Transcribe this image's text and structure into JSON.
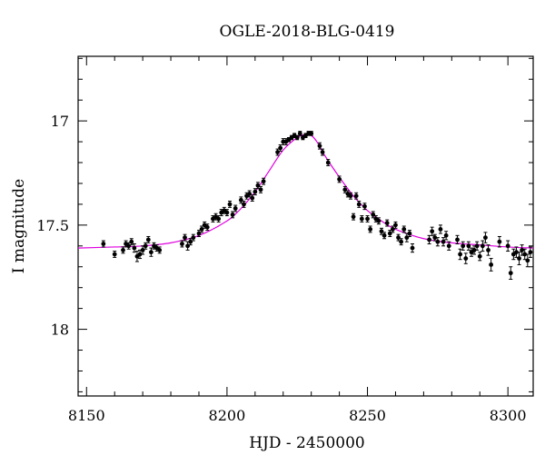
{
  "chart_data": {
    "type": "scatter",
    "title": "OGLE-2018-BLG-0419",
    "xlabel": "HJD - 2450000",
    "ylabel": "I magnitude",
    "xlim": [
      8147,
      8309
    ],
    "ylim": [
      18.32,
      16.69
    ],
    "y_inverted": true,
    "x_ticks": [
      8150,
      8200,
      8250,
      8300
    ],
    "x_tick_labels": [
      "8150",
      "8200",
      "8250",
      "8300"
    ],
    "y_ticks": [
      17,
      17.5,
      18
    ],
    "y_tick_labels": [
      "17",
      "17.5",
      "18"
    ],
    "grid": false,
    "colors": {
      "points": "#000000",
      "model": "#e000e0"
    },
    "series": [
      {
        "type": "scatter",
        "x": [
          8156,
          8160,
          8163,
          8164,
          8165,
          8166,
          8167,
          8168,
          8169,
          8170,
          8171,
          8172,
          8173,
          8174,
          8175,
          8176,
          8184,
          8185,
          8186,
          8187,
          8188,
          8190,
          8191,
          8192,
          8193,
          8195,
          8196,
          8197,
          8198,
          8199,
          8200,
          8201,
          8202,
          8203,
          8205,
          8206,
          8207,
          8208,
          8209,
          8210,
          8211,
          8212,
          8213,
          8218,
          8219,
          8220,
          8221,
          8222,
          8223,
          8224,
          8225,
          8226,
          8227,
          8228,
          8229,
          8230,
          8233,
          8234,
          8236,
          8240,
          8242,
          8243,
          8244,
          8245,
          8246,
          8247,
          8248,
          8249,
          8250,
          8251,
          8252,
          8253,
          8254,
          8255,
          8256,
          8257,
          8258,
          8259,
          8260,
          8261,
          8262,
          8263,
          8264,
          8265,
          8266,
          8272,
          8273,
          8274,
          8275,
          8276,
          8277,
          8278,
          8279,
          8282,
          8283,
          8284,
          8285,
          8286,
          8287,
          8288,
          8289,
          8290,
          8291,
          8292,
          8293,
          8294,
          8297,
          8300,
          8301,
          8302,
          8303,
          8304,
          8305,
          8306,
          8307,
          8308
        ],
        "y": [
          17.59,
          17.64,
          17.62,
          17.59,
          17.6,
          17.58,
          17.61,
          17.65,
          17.64,
          17.62,
          17.6,
          17.57,
          17.63,
          17.6,
          17.61,
          17.62,
          17.59,
          17.56,
          17.6,
          17.58,
          17.56,
          17.54,
          17.52,
          17.5,
          17.51,
          17.47,
          17.46,
          17.47,
          17.44,
          17.43,
          17.44,
          17.4,
          17.45,
          17.42,
          17.38,
          17.4,
          17.36,
          17.35,
          17.37,
          17.34,
          17.31,
          17.33,
          17.29,
          17.15,
          17.13,
          17.1,
          17.1,
          17.09,
          17.08,
          17.07,
          17.08,
          17.06,
          17.08,
          17.07,
          17.06,
          17.06,
          17.12,
          17.15,
          17.2,
          17.28,
          17.33,
          17.35,
          17.36,
          17.46,
          17.36,
          17.4,
          17.47,
          17.41,
          17.47,
          17.52,
          17.45,
          17.47,
          17.48,
          17.53,
          17.55,
          17.49,
          17.54,
          17.52,
          17.5,
          17.56,
          17.58,
          17.52,
          17.56,
          17.54,
          17.61,
          17.57,
          17.53,
          17.56,
          17.58,
          17.52,
          17.58,
          17.55,
          17.6,
          17.57,
          17.64,
          17.6,
          17.66,
          17.6,
          17.63,
          17.62,
          17.6,
          17.65,
          17.6,
          17.56,
          17.62,
          17.69,
          17.58,
          17.6,
          17.73,
          17.64,
          17.63,
          17.66,
          17.62,
          17.64,
          17.67,
          17.63
        ],
        "yerr": [
          0.015,
          0.015,
          0.015,
          0.015,
          0.015,
          0.015,
          0.02,
          0.025,
          0.02,
          0.02,
          0.015,
          0.015,
          0.02,
          0.015,
          0.015,
          0.015,
          0.015,
          0.015,
          0.02,
          0.015,
          0.015,
          0.015,
          0.015,
          0.015,
          0.015,
          0.015,
          0.015,
          0.015,
          0.015,
          0.015,
          0.015,
          0.015,
          0.015,
          0.015,
          0.015,
          0.015,
          0.015,
          0.015,
          0.015,
          0.015,
          0.015,
          0.015,
          0.015,
          0.015,
          0.015,
          0.015,
          0.015,
          0.01,
          0.01,
          0.01,
          0.01,
          0.01,
          0.01,
          0.01,
          0.01,
          0.01,
          0.015,
          0.015,
          0.015,
          0.015,
          0.015,
          0.015,
          0.015,
          0.015,
          0.015,
          0.015,
          0.015,
          0.015,
          0.015,
          0.015,
          0.015,
          0.015,
          0.015,
          0.015,
          0.015,
          0.015,
          0.015,
          0.015,
          0.015,
          0.015,
          0.015,
          0.015,
          0.02,
          0.015,
          0.02,
          0.02,
          0.02,
          0.015,
          0.02,
          0.02,
          0.02,
          0.02,
          0.02,
          0.02,
          0.025,
          0.02,
          0.025,
          0.02,
          0.02,
          0.02,
          0.02,
          0.02,
          0.025,
          0.025,
          0.025,
          0.03,
          0.025,
          0.025,
          0.03,
          0.025,
          0.025,
          0.03,
          0.025,
          0.025,
          0.03,
          0.025
        ]
      },
      {
        "type": "line",
        "x": [
          8147,
          8160,
          8170,
          8180,
          8190,
          8200,
          8205,
          8210,
          8215,
          8220,
          8225,
          8228,
          8230,
          8232,
          8235,
          8240,
          8245,
          8250,
          8255,
          8260,
          8270,
          8280,
          8290,
          8300,
          8309
        ],
        "y": [
          17.61,
          17.605,
          17.6,
          17.585,
          17.55,
          17.48,
          17.42,
          17.34,
          17.24,
          17.14,
          17.08,
          17.065,
          17.07,
          17.1,
          17.17,
          17.27,
          17.36,
          17.43,
          17.48,
          17.52,
          17.565,
          17.585,
          17.595,
          17.605,
          17.61
        ]
      }
    ]
  }
}
